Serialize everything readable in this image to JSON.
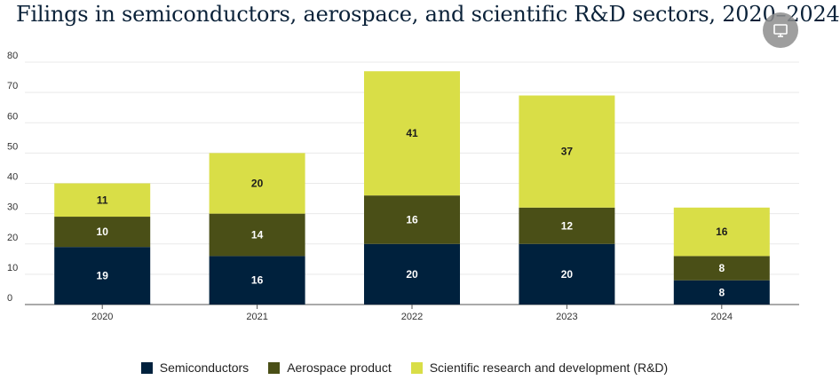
{
  "chart_data": {
    "type": "bar",
    "stacked": true,
    "title": "Filings in semiconductors, aerospace, and scientific R&D sectors, 2020–2024",
    "xlabel": "",
    "ylabel": "",
    "categories": [
      "2020",
      "2021",
      "2022",
      "2023",
      "2024"
    ],
    "ylim": [
      0,
      80
    ],
    "yticks": [
      0,
      10,
      20,
      30,
      40,
      50,
      60,
      70,
      80
    ],
    "grid": true,
    "legend_position": "bottom",
    "series": [
      {
        "name": "Semiconductors",
        "color": "#00213d",
        "label_color": "#ffffff",
        "values": [
          19,
          16,
          20,
          20,
          8
        ]
      },
      {
        "name": "Aerospace product",
        "color": "#4a4f17",
        "label_color": "#ffffff",
        "values": [
          10,
          14,
          16,
          12,
          8
        ]
      },
      {
        "name": "Scientific research and development (R&D)",
        "color": "#d9de47",
        "label_color": "#1c1c1c",
        "values": [
          11,
          20,
          41,
          37,
          16
        ]
      }
    ]
  },
  "toolbar": {
    "display_icon": "monitor-icon"
  }
}
